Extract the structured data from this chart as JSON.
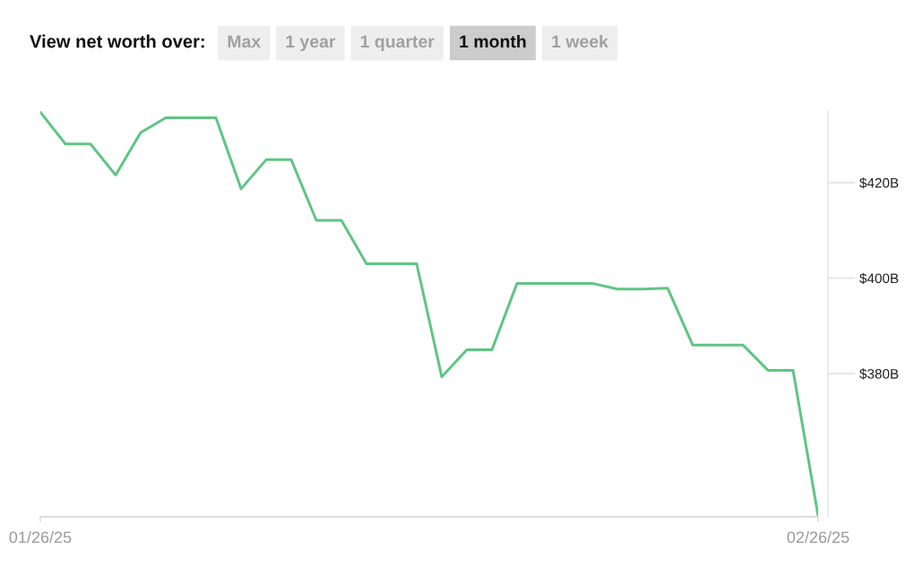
{
  "chart_data": {
    "type": "line",
    "annotations": [
      "View net worth over:",
      "Max",
      "1 year",
      "1 quarter",
      "1 month",
      "1 week"
    ],
    "x": [
      "2025-01-26",
      "2025-01-27",
      "2025-01-28",
      "2025-01-29",
      "2025-01-30",
      "2025-01-31",
      "2025-02-01",
      "2025-02-02",
      "2025-02-03",
      "2025-02-04",
      "2025-02-05",
      "2025-02-06",
      "2025-02-07",
      "2025-02-08",
      "2025-02-09",
      "2025-02-10",
      "2025-02-11",
      "2025-02-12",
      "2025-02-13",
      "2025-02-14",
      "2025-02-15",
      "2025-02-16",
      "2025-02-17",
      "2025-02-18",
      "2025-02-19",
      "2025-02-20",
      "2025-02-21",
      "2025-02-22",
      "2025-02-23",
      "2025-02-24",
      "2025-02-25",
      "2025-02-26"
    ],
    "series": [
      {
        "color": "#5fc584",
        "values": [
          434.8,
          428.1,
          428.1,
          421.6,
          430.5,
          433.6,
          433.6,
          433.6,
          418.7,
          424.8,
          424.8,
          412.1,
          412.1,
          403.0,
          403.0,
          403.0,
          379.3,
          385.0,
          385.0,
          398.9,
          398.9,
          398.9,
          398.9,
          397.7,
          397.7,
          397.9,
          386.0,
          386.0,
          386.0,
          380.7,
          380.7,
          350.2
        ]
      }
    ],
    "xlim": [
      "2025-01-26",
      "2025-02-26"
    ],
    "xticks": [
      {
        "value": "2025-01-26",
        "label": "01/26/25"
      },
      {
        "value": "2025-02-26",
        "label": "02/26/25"
      }
    ],
    "ylim": [
      350,
      435
    ],
    "yticks": [
      {
        "value": 380,
        "label": "$380B"
      },
      {
        "value": 400,
        "label": "$400B"
      },
      {
        "value": 420,
        "label": "$420B"
      }
    ],
    "line_style": "solid",
    "marker": "none",
    "grid": false
  }
}
